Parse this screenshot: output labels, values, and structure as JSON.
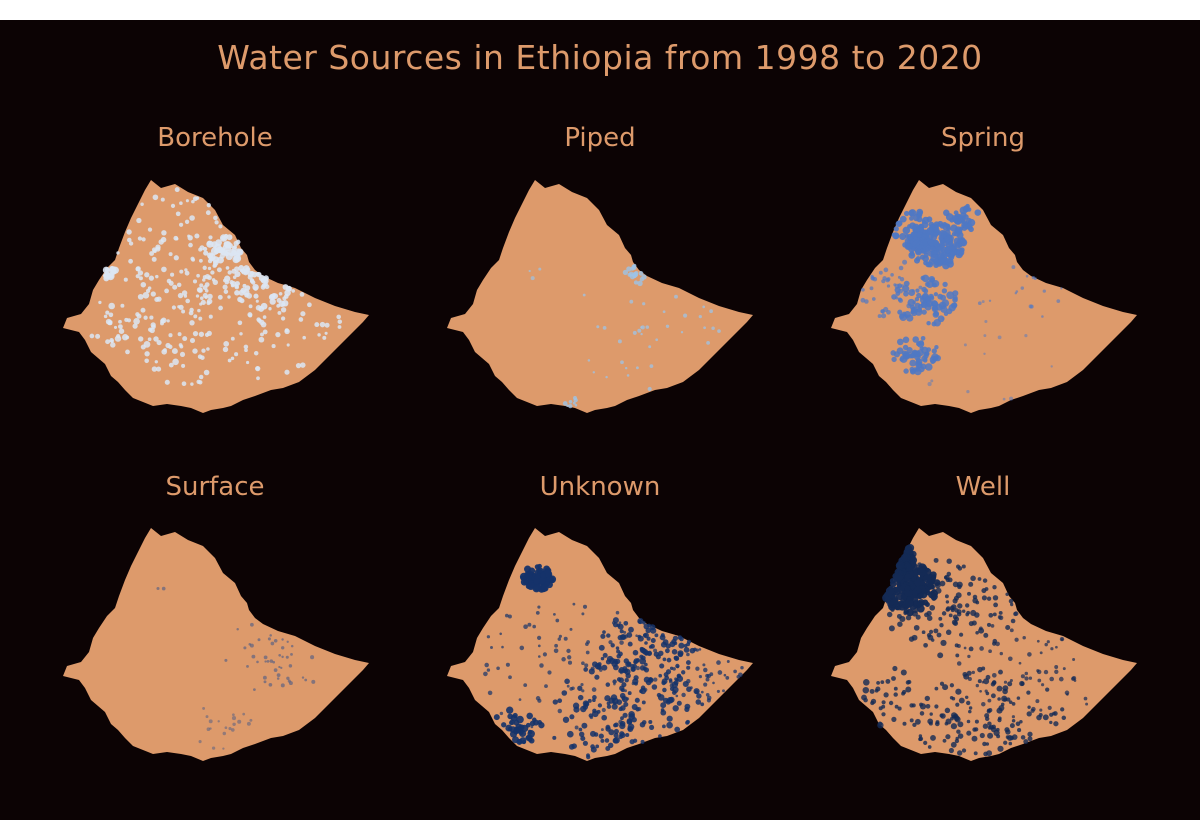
{
  "title": "Water Sources in Ethiopia from 1998 to 2020",
  "colors": {
    "background": "#0c0304",
    "country_fill": "#dd9a6b",
    "title_text": "#dd9a6b"
  },
  "panels": [
    {
      "label": "Borehole",
      "point_color": "#dce6f3",
      "density": "dense-scatter-center"
    },
    {
      "label": "Piped",
      "point_color": "#9dc3e6",
      "density": "sparse-east"
    },
    {
      "label": "Spring",
      "point_color": "#4f78c4",
      "density": "clustered-northwest"
    },
    {
      "label": "Surface",
      "point_color": "#4a5a86",
      "density": "sparse-southeast"
    },
    {
      "label": "Unknown",
      "point_color": "#15336a",
      "density": "dense-east-south"
    },
    {
      "label": "Well",
      "point_color": "#142a55",
      "density": "dense-north-scatter"
    }
  ]
}
